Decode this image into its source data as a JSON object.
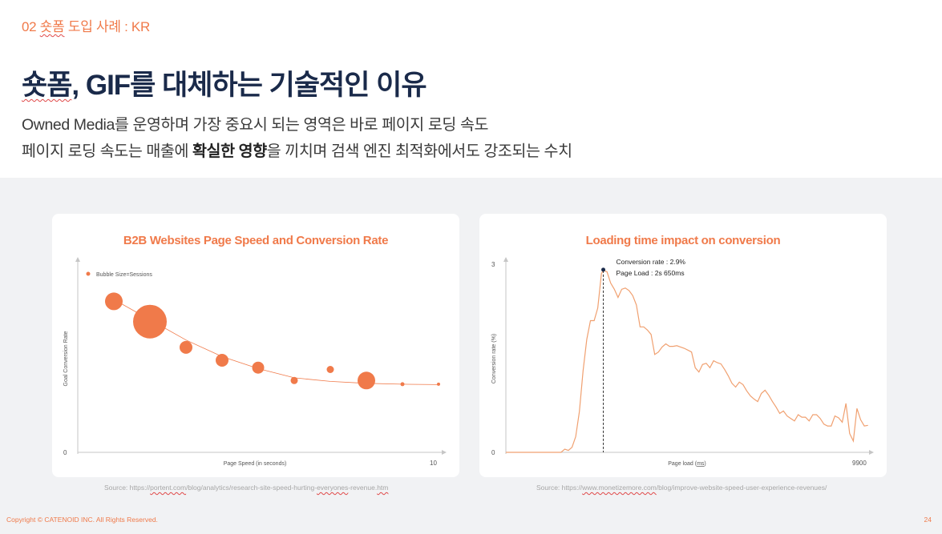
{
  "header": {
    "section_number": "02",
    "section_word": "숏폼",
    "section_rest": "도입 사례 : KR"
  },
  "title": {
    "word": "숏폼",
    "rest": ", GIF를 대체하는 기술적인 이유"
  },
  "subtitle": {
    "line1": "Owned Media를 운영하며 가장 중요시 되는 영역은 바로 페이지 로딩 속도",
    "line2_before": "페이지 로딩 속도는 매출에 ",
    "line2_bold": "확실한 영향",
    "line2_after": "을 끼치며 검색 엔진 최적화에서도 강조되는 수치"
  },
  "colors": {
    "accent": "#f07a4a",
    "title": "#1a2a4a",
    "background_band": "#f1f2f4"
  },
  "chart_data": [
    {
      "type": "scatter",
      "title": "B2B Websites Page Speed and Conversion Rate",
      "xlabel": "Page Speed (in seconds)",
      "ylabel": "Goal Conversion Rate",
      "x_tick_labels": [
        "10"
      ],
      "y_tick_labels": [
        "0"
      ],
      "xlim": [
        0,
        10
      ],
      "ylim": [
        0,
        10
      ],
      "legend": "Bubble Size=Sessions",
      "legend_position": "top-left",
      "points": [
        {
          "x": 1.0,
          "y": 8.2,
          "size": 11
        },
        {
          "x": 2.0,
          "y": 7.1,
          "size": 21
        },
        {
          "x": 3.0,
          "y": 5.7,
          "size": 8
        },
        {
          "x": 4.0,
          "y": 5.0,
          "size": 8
        },
        {
          "x": 5.0,
          "y": 4.6,
          "size": 7.5
        },
        {
          "x": 6.0,
          "y": 3.9,
          "size": 4.5
        },
        {
          "x": 7.0,
          "y": 4.5,
          "size": 4.5
        },
        {
          "x": 8.0,
          "y": 3.9,
          "size": 11
        },
        {
          "x": 9.0,
          "y": 3.7,
          "size": 2.5
        },
        {
          "x": 10.0,
          "y": 3.7,
          "size": 2
        }
      ],
      "trend": [
        [
          1.0,
          8.3
        ],
        [
          2.0,
          7.2
        ],
        [
          3.0,
          6.1
        ],
        [
          4.0,
          5.2
        ],
        [
          5.0,
          4.55
        ],
        [
          6.0,
          4.05
        ],
        [
          7.0,
          3.85
        ],
        [
          8.0,
          3.75
        ],
        [
          9.0,
          3.7
        ],
        [
          10.0,
          3.68
        ]
      ],
      "source": {
        "prefix": "Source: https://",
        "domain": "portent.com",
        "mid": "/blog/analytics/research-site-speed-hurting-",
        "word": "everyones",
        "rest": "-revenue.",
        "ext": "htm"
      }
    },
    {
      "type": "line",
      "title": "Loading time impact on conversion",
      "xlabel_before": "Page load (",
      "xlabel_unit": "ms",
      "xlabel_after": ")",
      "ylabel": "Conversion rate (%)",
      "x_tick_labels": [
        "9900"
      ],
      "y_tick_labels": [
        "0",
        "3"
      ],
      "xlim": [
        0,
        9900
      ],
      "ylim": [
        0,
        3
      ],
      "annotation": {
        "x": 2650,
        "y": 2.9,
        "line1": "Conversion rate : 2.9%",
        "line2": "Page Load : 2s 650ms"
      },
      "x": [
        0,
        1500,
        1600,
        1700,
        1800,
        1900,
        2000,
        2100,
        2200,
        2300,
        2400,
        2500,
        2600,
        2650,
        2750,
        2850,
        2950,
        3050,
        3150,
        3250,
        3350,
        3450,
        3550,
        3650,
        3750,
        3850,
        3950,
        4050,
        4150,
        4250,
        4350,
        4450,
        4550,
        4650,
        4750,
        4850,
        4950,
        5050,
        5150,
        5250,
        5350,
        5450,
        5550,
        5650,
        5750,
        5850,
        5950,
        6050,
        6150,
        6250,
        6350,
        6450,
        6550,
        6650,
        6750,
        6850,
        6950,
        7050,
        7150,
        7250,
        7350,
        7450,
        7550,
        7650,
        7750,
        7850,
        7950,
        8050,
        8150,
        8250,
        8350,
        8450,
        8550,
        8650,
        8750,
        8850,
        8950,
        9050,
        9150,
        9250,
        9350,
        9450,
        9550,
        9650,
        9750,
        9850
      ],
      "y": [
        0.0,
        0.0,
        0.05,
        0.03,
        0.08,
        0.25,
        0.65,
        1.3,
        1.8,
        2.1,
        2.1,
        2.3,
        2.85,
        2.9,
        2.88,
        2.7,
        2.6,
        2.47,
        2.6,
        2.62,
        2.58,
        2.5,
        2.35,
        2.0,
        2.0,
        1.95,
        1.88,
        1.56,
        1.6,
        1.68,
        1.73,
        1.69,
        1.69,
        1.7,
        1.68,
        1.66,
        1.63,
        1.6,
        1.35,
        1.28,
        1.4,
        1.42,
        1.35,
        1.46,
        1.43,
        1.41,
        1.32,
        1.22,
        1.1,
        1.04,
        1.12,
        1.08,
        0.98,
        0.9,
        0.85,
        0.81,
        0.94,
        0.99,
        0.91,
        0.81,
        0.72,
        0.62,
        0.66,
        0.58,
        0.54,
        0.5,
        0.6,
        0.56,
        0.56,
        0.5,
        0.6,
        0.6,
        0.54,
        0.45,
        0.42,
        0.42,
        0.58,
        0.55,
        0.48,
        0.78,
        0.3,
        0.18,
        0.7,
        0.52,
        0.42,
        0.43
      ],
      "source": {
        "prefix": "Source: https://",
        "domain": "www.monetizemore.com",
        "rest": "/blog/improve-website-speed-user-experience-revenues/"
      }
    }
  ],
  "footer": {
    "copyright": "Copyright © CATENOID INC. All Rights Reserved.",
    "page_number": "24"
  }
}
